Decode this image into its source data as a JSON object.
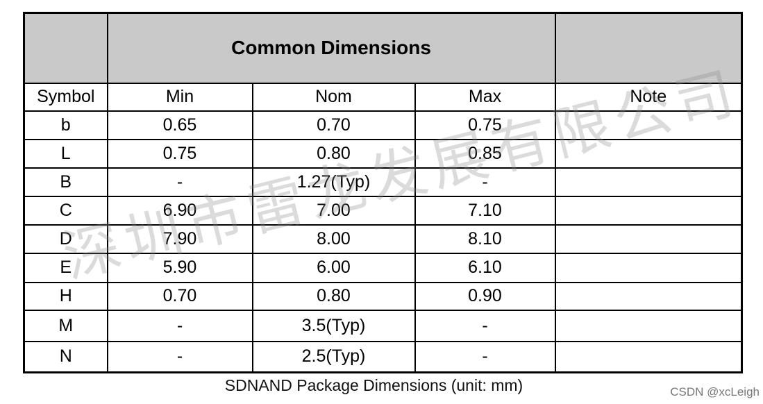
{
  "table": {
    "title": "Common Dimensions",
    "header": [
      "Symbol",
      "Min",
      "Nom",
      "Max",
      "Note"
    ],
    "rows": [
      [
        "b",
        "0.65",
        "0.70",
        "0.75"
      ],
      [
        "L",
        "0.75",
        "0.80",
        "0.85"
      ],
      [
        "B",
        "-",
        "1.27(Typ)",
        "-"
      ],
      [
        "C",
        "6.90",
        "7.00",
        "7.10"
      ],
      [
        "D",
        "7.90",
        "8.00",
        "8.10"
      ],
      [
        "E",
        "5.90",
        "6.00",
        "6.10"
      ],
      [
        "H",
        "0.70",
        "0.80",
        "0.90"
      ],
      [
        "M",
        "-",
        "3.5(Typ)",
        "-"
      ],
      [
        "N",
        "-",
        "2.5(Typ)",
        "-"
      ]
    ]
  },
  "caption": "SDNAND Package Dimensions (unit: mm)",
  "watermark": "深圳市雷龙发展有限公司",
  "credit": "CSDN @xcLeigh"
}
